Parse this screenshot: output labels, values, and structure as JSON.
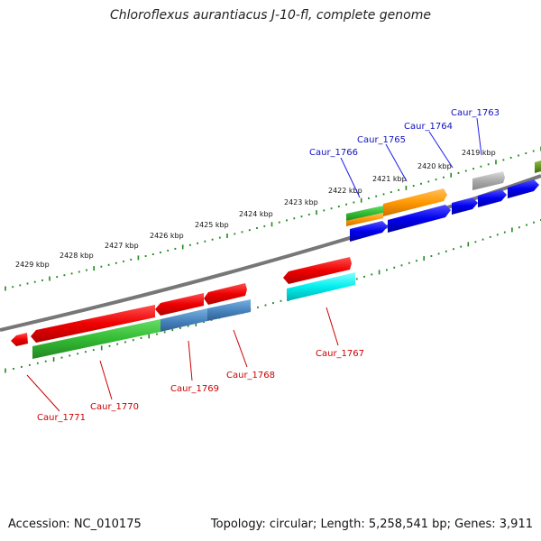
{
  "title": "Chloroflexus aurantiacus J-10-fl, complete genome",
  "footer": {
    "accession": "Accession: NC_010175",
    "summary": "Topology: circular; Length: 5,258,541 bp; Genes: 3,911"
  },
  "kbp_labels": [
    "2429 kbp",
    "2428 kbp",
    "2427 kbp",
    "2426 kbp",
    "2425 kbp",
    "2424 kbp",
    "2423 kbp",
    "2422 kbp",
    "2421 kbp",
    "2420 kbp",
    "2419 kbp"
  ],
  "gene_labels_top": [
    "Caur_1766",
    "Caur_1765",
    "Caur_1764",
    "Caur_1763"
  ],
  "gene_labels_bottom": [
    "Caur_1771",
    "Caur_1770",
    "Caur_1769",
    "Caur_1768",
    "Caur_1767"
  ],
  "colors": {
    "red": "#ee0000",
    "green": "#33bb33",
    "steelblue": "#4a86c0",
    "cyan": "#00eeee",
    "orange": "#ff9900",
    "blue": "#0000ee",
    "gray": "#aaaaaa",
    "olive": "#669922",
    "backbone": "#777777",
    "ticks": "#228822"
  }
}
